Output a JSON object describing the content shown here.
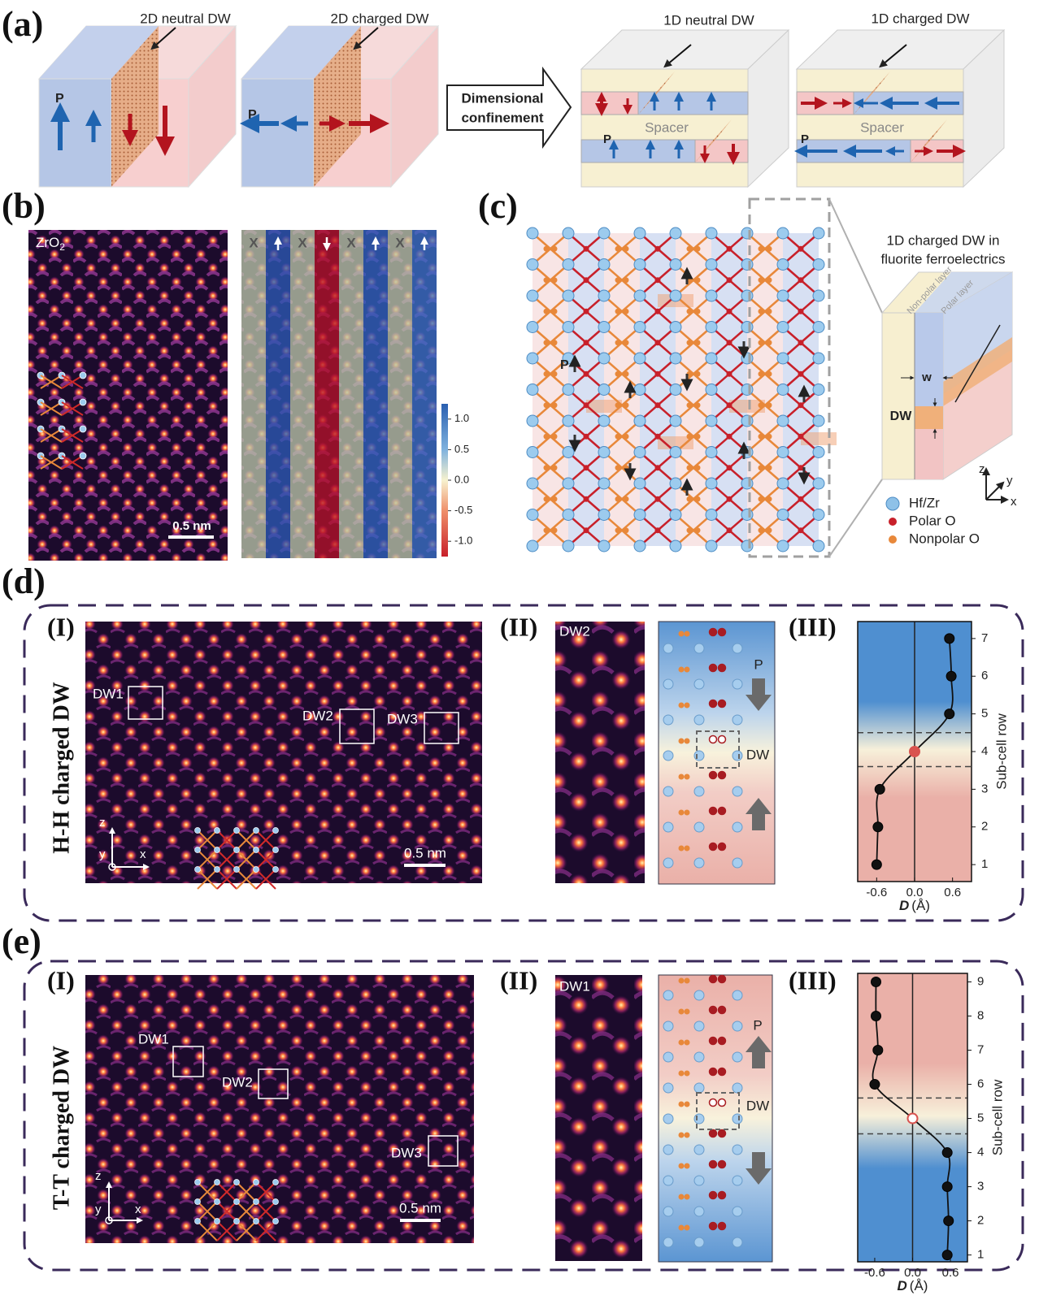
{
  "panel_a": {
    "label": "(a)",
    "cube_titles": [
      "2D neutral DW",
      "2D charged DW",
      "1D neutral DW",
      "1D charged DW"
    ],
    "p_label": "P",
    "arrow_text": [
      "Dimensional",
      "confinement"
    ],
    "spacer": "Spacer"
  },
  "panel_b": {
    "label": "(b)",
    "material": "ZrO",
    "material_subscript": "2",
    "scale_bar": "0.5 nm",
    "column_labels": [
      "X",
      "X",
      "X",
      "X"
    ],
    "colorbar": {
      "lim": [
        -1.25,
        1.25
      ],
      "ticks": [
        {
          "value": 1,
          "label": "1.0"
        },
        0.5,
        {
          "value": 0,
          "label": "0.0"
        },
        -0.5,
        {
          "value": -1,
          "label": "-1.0"
        }
      ]
    }
  },
  "panel_c": {
    "label": "(c)",
    "p_label": "P",
    "inset_title": [
      "1D charged DW in",
      "fluorite ferroelectrics"
    ],
    "layer_labels": [
      "Non-polar layer",
      "Polar layer"
    ],
    "w_label": "w",
    "dw_label": "DW",
    "axes": [
      "z",
      "y",
      "x"
    ],
    "legend": [
      {
        "name": "Hf/Zr",
        "color": "#8ec1e8"
      },
      {
        "name": "Polar O",
        "color": "#c8202a"
      },
      {
        "name": "Nonpolar O",
        "color": "#e8883a"
      }
    ]
  },
  "panel_d": {
    "label": "(d)",
    "row_title": "H-H charged DW",
    "sub_labels": [
      "(I)",
      "(II)",
      "(III)"
    ],
    "dw_boxes": [
      "DW1",
      "DW2",
      "DW3"
    ],
    "scale_bar": "0.5 nm",
    "axes": [
      "z",
      "y",
      "x"
    ],
    "zoom_title": "DW2",
    "p_label": "P",
    "dw_label": "DW"
  },
  "panel_e": {
    "label": "(e)",
    "row_title": "T-T charged DW",
    "sub_labels": [
      "(I)",
      "(II)",
      "(III)"
    ],
    "dw_boxes": [
      "DW1",
      "DW2",
      "DW3"
    ],
    "scale_bar": "0.5 nm",
    "axes": [
      "z",
      "y",
      "x"
    ],
    "zoom_title": "DW1",
    "p_label": "P",
    "dw_label": "DW"
  },
  "chart_data": [
    {
      "type": "scatter",
      "x_label_symbol": "D",
      "x_label_unit": "(Å)",
      "y_label": "Sub-cell row",
      "x": [
        -0.6,
        -0.58,
        -0.55,
        0,
        0.55,
        0.58,
        0.55
      ],
      "y": [
        1,
        2,
        3,
        4,
        5,
        6,
        7
      ],
      "xlim": [
        -0.9,
        0.9
      ],
      "xticks": [
        -0.6,
        {
          "value": 0,
          "label": "0.0"
        },
        0.6
      ],
      "ylim": [
        0.55,
        7.45
      ],
      "yticks": [
        1,
        2,
        3,
        4,
        5,
        6,
        7
      ],
      "boundaries": [
        3.6,
        4.5
      ],
      "point_color": "#111111",
      "center_color": "#d9534f",
      "center_style": "filled",
      "background": {
        "top": "#4f8fd0",
        "middle": "#f7f0da",
        "bottom": "#eab0a8"
      }
    },
    {
      "type": "scatter",
      "x_label_symbol": "D",
      "x_label_unit": "(Å)",
      "y_label": "Sub-cell row",
      "x": [
        0.55,
        0.57,
        0.55,
        0.55,
        0,
        -0.6,
        -0.55,
        -0.58,
        -0.58
      ],
      "y": [
        1,
        2,
        3,
        4,
        5,
        6,
        7,
        8,
        9
      ],
      "xlim": [
        -0.87,
        0.87
      ],
      "xticks": [
        -0.6,
        {
          "value": 0,
          "label": "0.0"
        },
        0.6
      ],
      "ylim": [
        0.8,
        9.25
      ],
      "yticks": [
        1,
        2,
        3,
        4,
        5,
        6,
        7,
        8,
        9
      ],
      "boundaries": [
        4.55,
        5.6
      ],
      "point_color": "#111111",
      "center_color": "#d9534f",
      "center_style": "open",
      "background": {
        "top": "#eab0a8",
        "middle": "#f7f0da",
        "bottom": "#4f8fd0"
      }
    }
  ]
}
